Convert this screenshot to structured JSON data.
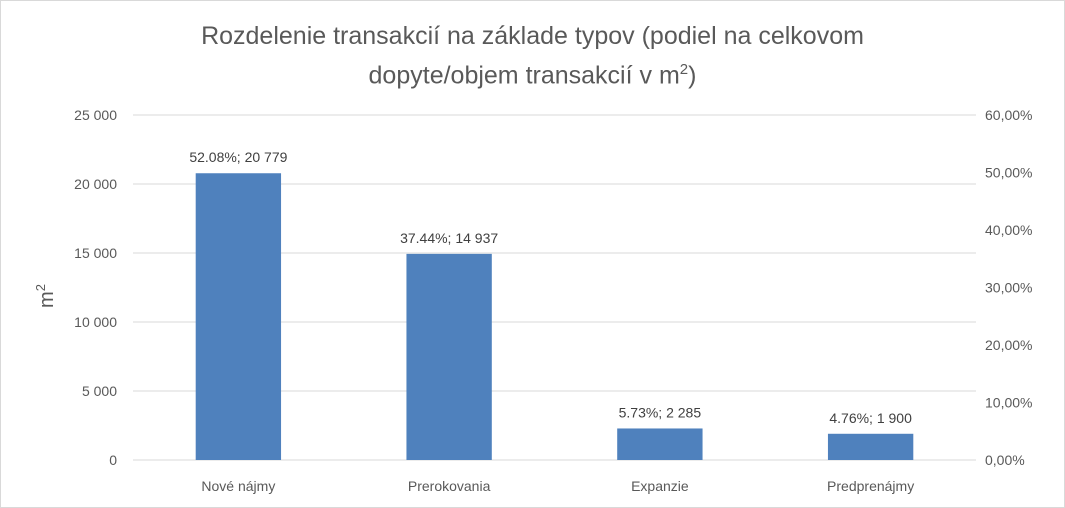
{
  "chart_data": {
    "type": "bar",
    "title_line1": "Rozdelenie transakcií na základe typov (podiel na celkovom",
    "title_line2": "dopyte/objem transakcií v m",
    "title_sup": "2",
    "ylabel": "m",
    "ylabel_sup": "2",
    "categories": [
      "Nové nájmy",
      "Prerokovania",
      "Expanzie",
      "Predprenájmy"
    ],
    "values": [
      20779,
      14937,
      2285,
      1900
    ],
    "shares": [
      52.08,
      37.44,
      5.73,
      4.76
    ],
    "data_labels": [
      "52.08%; 20 779",
      "37.44%; 14 937",
      "5.73%; 2 285",
      "4.76%; 1 900"
    ],
    "ylim": [
      0,
      25000
    ],
    "y_ticks": [
      0,
      5000,
      10000,
      15000,
      20000,
      25000
    ],
    "y_tick_labels": [
      "0",
      "5 000",
      "10 000",
      "15 000",
      "20 000",
      "25 000"
    ],
    "y2lim": [
      0,
      60
    ],
    "y2_tick_labels": [
      "0,00%",
      "10,00%",
      "20,00%",
      "30,00%",
      "40,00%",
      "50,00%",
      "60,00%"
    ],
    "grid": true,
    "legend": "none",
    "bar_color": "#4f81bd",
    "grid_color": "#d9d9d9"
  }
}
